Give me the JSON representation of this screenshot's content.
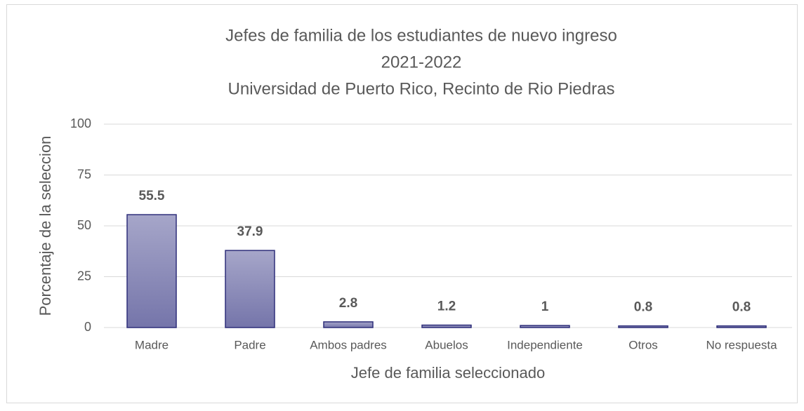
{
  "chart_data": {
    "type": "bar",
    "title": [
      "Jefes de familia de los estudiantes de nuevo ingreso",
      "2021-2022",
      "Universidad de Puerto Rico, Recinto de Rio Piedras"
    ],
    "x_label": "Jefe de familia seleccionado",
    "y_label": "Porcentaje de la seleccion",
    "categories": [
      "Madre",
      "Padre",
      "Ambos padres",
      "Abuelos",
      "Independiente",
      "Otros",
      "No respuesta"
    ],
    "values": [
      55.5,
      37.9,
      2.8,
      1.2,
      1,
      0.8,
      0.8
    ],
    "color": "#7d7db0",
    "ylim": [
      0,
      100
    ],
    "yticks": [
      0,
      25,
      50,
      75,
      100
    ],
    "grid": true
  }
}
